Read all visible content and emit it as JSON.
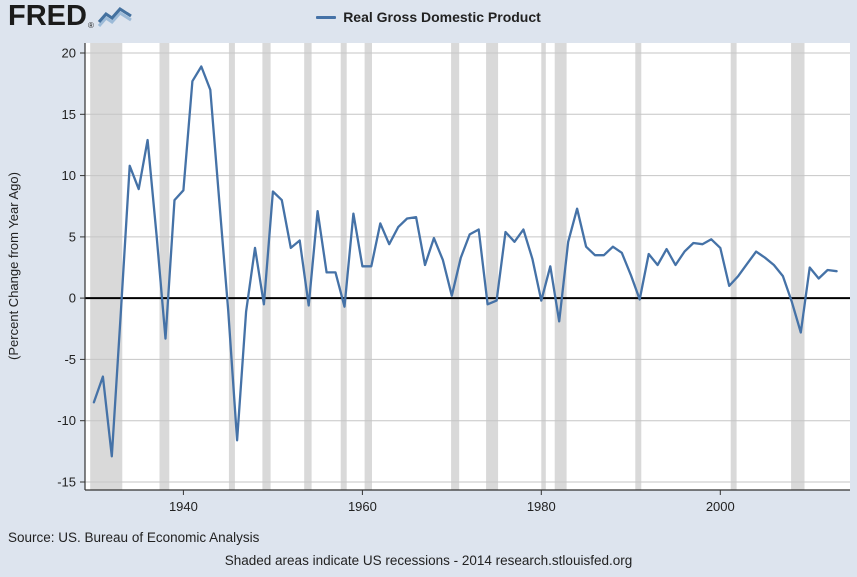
{
  "header": {
    "logo_text": "FRED",
    "registered_mark": "®",
    "legend": {
      "label": "Real Gross Domestic Product"
    }
  },
  "footer": {
    "source": "Source: US. Bureau of Economic Analysis",
    "note": "Shaded areas indicate US recessions - 2014 research.stlouisfed.org"
  },
  "colors": {
    "page_background": "#dde4ee",
    "plot_background": "#ffffff",
    "accent_blue": "#4572a7"
  },
  "icons": {
    "logo_chart_icon": "fred-line-graph-icon"
  },
  "chart_data": {
    "type": "line",
    "title": "Real Gross Domestic Product",
    "ylabel": "(Percent Change from Year Ago)",
    "xlabel": "",
    "xlim": [
      1929,
      2014.5
    ],
    "ylim": [
      -15,
      20
    ],
    "xticks": [
      1940,
      1960,
      1980,
      2000
    ],
    "yticks": [
      -15,
      -10,
      -5,
      0,
      5,
      10,
      15,
      20
    ],
    "grid": true,
    "legend_position": "top-center",
    "line_color": "#4572a7",
    "recession_color": "#d9d9d9",
    "grid_color": "#c6c6c6",
    "zero_line_color": "#000000",
    "axis_color": "#333333",
    "plot_bg": "#ffffff",
    "frequency": "annual",
    "years": [
      1930,
      1931,
      1932,
      1933,
      1934,
      1935,
      1936,
      1937,
      1938,
      1939,
      1940,
      1941,
      1942,
      1943,
      1944,
      1945,
      1946,
      1947,
      1948,
      1949,
      1950,
      1951,
      1952,
      1953,
      1954,
      1955,
      1956,
      1957,
      1958,
      1959,
      1960,
      1961,
      1962,
      1963,
      1964,
      1965,
      1966,
      1967,
      1968,
      1969,
      1970,
      1971,
      1972,
      1973,
      1974,
      1975,
      1976,
      1977,
      1978,
      1979,
      1980,
      1981,
      1982,
      1983,
      1984,
      1985,
      1986,
      1987,
      1988,
      1989,
      1990,
      1991,
      1992,
      1993,
      1994,
      1995,
      1996,
      1997,
      1998,
      1999,
      2000,
      2001,
      2002,
      2003,
      2004,
      2005,
      2006,
      2007,
      2008,
      2009,
      2010,
      2011,
      2012,
      2013
    ],
    "values": [
      -8.5,
      -6.4,
      -12.9,
      -1.2,
      10.8,
      8.9,
      12.9,
      5.1,
      -3.3,
      8.0,
      8.8,
      17.7,
      18.9,
      17.0,
      8.0,
      -1.0,
      -11.6,
      -1.1,
      4.1,
      -0.5,
      8.7,
      8.0,
      4.1,
      4.7,
      -0.6,
      7.1,
      2.1,
      2.1,
      -0.7,
      6.9,
      2.6,
      2.6,
      6.1,
      4.4,
      5.8,
      6.5,
      6.6,
      2.7,
      4.9,
      3.1,
      0.2,
      3.3,
      5.2,
      5.6,
      -0.5,
      -0.2,
      5.4,
      4.6,
      5.6,
      3.2,
      -0.2,
      2.6,
      -1.9,
      4.6,
      7.3,
      4.2,
      3.5,
      3.5,
      4.2,
      3.7,
      1.9,
      -0.1,
      3.6,
      2.7,
      4.0,
      2.7,
      3.8,
      4.5,
      4.4,
      4.8,
      4.1,
      1.0,
      1.8,
      2.8,
      3.8,
      3.3,
      2.7,
      1.8,
      -0.3,
      -2.8,
      2.5,
      1.6,
      2.3,
      2.2
    ],
    "recessions": [
      [
        1929.58,
        1933.17
      ],
      [
        1937.33,
        1938.42
      ],
      [
        1945.08,
        1945.75
      ],
      [
        1948.83,
        1949.75
      ],
      [
        1953.5,
        1954.33
      ],
      [
        1957.58,
        1958.25
      ],
      [
        1960.25,
        1961.08
      ],
      [
        1969.92,
        1970.83
      ],
      [
        1973.83,
        1975.17
      ],
      [
        1980.0,
        1980.5
      ],
      [
        1981.5,
        1982.83
      ],
      [
        1990.5,
        1991.17
      ],
      [
        2001.17,
        2001.83
      ],
      [
        2007.92,
        2009.42
      ]
    ]
  }
}
